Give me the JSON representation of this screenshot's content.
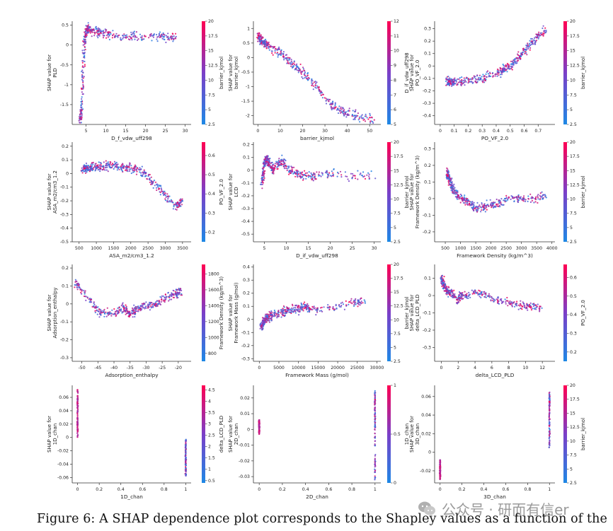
{
  "caption": "Figure 6: A SHAP dependence plot corresponds to the Shapley values as a function of the",
  "watermark": "公众号 · 研而有信er",
  "colors": {
    "low": "#1e88e5",
    "mid": "#7b3fc8",
    "high": "#ff0052",
    "point_opacity": 0.85
  },
  "chart_data": [
    {
      "type": "scatter",
      "xlabel": "D_f_vdw_uff298",
      "ylabel": "SHAP value for",
      "ylabel2": "PLD",
      "xticks": [
        5,
        10,
        15,
        20,
        25,
        30
      ],
      "yticks": [
        0.5,
        0.0,
        -0.5,
        -1.0,
        -1.5
      ],
      "xlim": [
        1.5,
        31.5
      ],
      "ylim": [
        -2.0,
        0.6
      ],
      "colorbar": {
        "label": "barrier_kjmol",
        "ticks": [
          2.5,
          5.0,
          7.5,
          10.0,
          12.5,
          15.0,
          17.5,
          20.0
        ],
        "range": [
          2.5,
          20.0
        ]
      },
      "series": [
        {
          "x": [
            3.6,
            3.9,
            4.2,
            4.6,
            5,
            5.5,
            6.5,
            8,
            10,
            12,
            15,
            18,
            22,
            25,
            28
          ],
          "y": [
            -1.9,
            -1.5,
            -0.6,
            0.1,
            0.33,
            0.4,
            0.36,
            0.33,
            0.28,
            0.25,
            0.22,
            0.22,
            0.2,
            0.2,
            0.2
          ]
        }
      ]
    },
    {
      "type": "scatter",
      "xlabel": "barrier_kjmol",
      "ylabel": "SHAP value for",
      "ylabel2": "barrier_kjmol",
      "xticks": [
        0,
        10,
        20,
        30,
        40,
        50
      ],
      "yticks": [
        1.0,
        0.5,
        0.0,
        -0.5,
        -1.0,
        -1.5,
        -2.0
      ],
      "xlim": [
        -2,
        55
      ],
      "ylim": [
        -2.3,
        1.25
      ],
      "colorbar": {
        "label": "D_if_vdw_uff298",
        "ticks": [
          5,
          6,
          7,
          8,
          9,
          10,
          11,
          12
        ],
        "range": [
          5,
          12
        ]
      },
      "series": [
        {
          "x": [
            0,
            2,
            5,
            10,
            15,
            20,
            25,
            30,
            35,
            40,
            45,
            52
          ],
          "y": [
            0.75,
            0.55,
            0.4,
            0.15,
            -0.2,
            -0.5,
            -0.9,
            -1.4,
            -1.75,
            -1.9,
            -2.0,
            -2.15
          ]
        }
      ]
    },
    {
      "type": "scatter",
      "xlabel": "PO_VF_2.0",
      "ylabel": "SHAP value for",
      "ylabel2": "PO_VF_2.0",
      "xticks": [
        0.0,
        0.1,
        0.2,
        0.3,
        0.4,
        0.5,
        0.6,
        0.7
      ],
      "yticks": [
        0.3,
        0.2,
        0.1,
        0.0,
        -0.1,
        -0.2,
        -0.3,
        -0.4
      ],
      "xlim": [
        -0.04,
        0.82
      ],
      "ylim": [
        -0.47,
        0.36
      ],
      "colorbar": {
        "label": "barrier_kjmol",
        "ticks": [
          2.5,
          5.0,
          7.5,
          10.0,
          12.5,
          15.0,
          17.5,
          20.0
        ],
        "range": [
          2.5,
          20.0
        ]
      },
      "series": [
        {
          "x": [
            0.05,
            0.1,
            0.2,
            0.3,
            0.4,
            0.45,
            0.5,
            0.55,
            0.6,
            0.65,
            0.7,
            0.76
          ],
          "y": [
            -0.12,
            -0.14,
            -0.12,
            -0.1,
            -0.06,
            -0.03,
            0.0,
            0.05,
            0.12,
            0.18,
            0.24,
            0.3
          ]
        }
      ]
    },
    {
      "type": "scatter",
      "xlabel": "ASA_m2/cm3_1.2",
      "ylabel": "SHAP value for",
      "ylabel2": "ASA_m2/cm3_1.2",
      "xticks": [
        500,
        1000,
        1500,
        2000,
        2500,
        3000,
        3500
      ],
      "yticks": [
        0.2,
        0.1,
        0.0,
        -0.1,
        -0.2,
        -0.3,
        -0.4,
        -0.5
      ],
      "xlim": [
        300,
        3750
      ],
      "ylim": [
        -0.5,
        0.23
      ],
      "colorbar": {
        "label": "PO_VF_2.0",
        "ticks": [
          0.2,
          0.3,
          0.4,
          0.5,
          0.6
        ],
        "range": [
          0.15,
          0.67
        ]
      },
      "series": [
        {
          "x": [
            600,
            900,
            1200,
            1500,
            1800,
            2100,
            2400,
            2700,
            3000,
            3300,
            3500
          ],
          "y": [
            0.03,
            0.05,
            0.05,
            0.06,
            0.04,
            0.04,
            0.0,
            -0.08,
            -0.16,
            -0.24,
            -0.2
          ]
        }
      ]
    },
    {
      "type": "scatter",
      "xlabel": "D_if_vdw_uff298",
      "ylabel": "SHAP value for",
      "ylabel2": "LCD",
      "xticks": [
        5,
        10,
        15,
        20,
        25,
        30
      ],
      "yticks": [
        0.2,
        0.1,
        0.0,
        -0.1,
        -0.2,
        -0.3,
        -0.4,
        -0.5
      ],
      "xlim": [
        2.5,
        31.5
      ],
      "ylim": [
        -0.56,
        0.22
      ],
      "colorbar": {
        "label": "barrier_kjmol",
        "ticks": [
          2.5,
          5.0,
          7.5,
          10.0,
          12.5,
          15.0,
          17.5,
          20.0
        ],
        "range": [
          2.5,
          20.0
        ]
      },
      "series": [
        {
          "x": [
            4.5,
            5,
            5.5,
            6,
            7,
            8,
            9,
            10,
            12,
            14,
            16,
            20,
            25,
            30
          ],
          "y": [
            -0.1,
            0.05,
            0.1,
            0.06,
            0.0,
            0.04,
            0.08,
            0.02,
            -0.02,
            -0.04,
            -0.05,
            -0.02,
            -0.04,
            -0.04
          ]
        }
      ]
    },
    {
      "type": "scatter",
      "xlabel": "Framework Density (kg/m^3)",
      "ylabel": "SHAP value for",
      "ylabel2": "Framework Density (kg/m^3)",
      "xticks": [
        500,
        1000,
        1500,
        2000,
        2500,
        3000,
        3500,
        4000
      ],
      "yticks": [
        0.3,
        0.2,
        0.1,
        0.0,
        -0.1,
        -0.2
      ],
      "xlim": [
        150,
        4100
      ],
      "ylim": [
        -0.26,
        0.34
      ],
      "colorbar": {
        "label": "barrier_kjmol",
        "ticks": [
          2.5,
          5.0,
          7.5,
          10.0,
          12.5,
          15.0,
          17.5,
          20.0
        ],
        "range": [
          2.5,
          20.0
        ]
      },
      "series": [
        {
          "x": [
            550,
            700,
            900,
            1200,
            1500,
            1800,
            2200,
            2600,
            3000,
            3500,
            3800
          ],
          "y": [
            0.16,
            0.08,
            0.02,
            -0.02,
            -0.05,
            -0.05,
            -0.03,
            0.0,
            0.0,
            0.0,
            0.01
          ]
        }
      ]
    },
    {
      "type": "scatter",
      "xlabel": "Adsorption_enthalpy",
      "ylabel": "SHAP value for",
      "ylabel2": "Adsorption_enthalpy",
      "xticks": [
        -50,
        -45,
        -40,
        -35,
        -30,
        -25,
        -20
      ],
      "yticks": [
        0.2,
        0.1,
        0.0,
        -0.1,
        -0.2,
        -0.3
      ],
      "xlim": [
        -53,
        -16
      ],
      "ylim": [
        -0.32,
        0.22
      ],
      "colorbar": {
        "label": "Framework Density (kg/m^3)",
        "ticks": [
          800,
          1000,
          1200,
          1400,
          1600,
          1800
        ],
        "range": [
          700,
          1920
        ]
      },
      "series": [
        {
          "x": [
            -52,
            -45,
            -40,
            -37,
            -35,
            -33,
            -30,
            -27,
            -24,
            -21,
            -19
          ],
          "y": [
            0.12,
            -0.04,
            -0.05,
            -0.02,
            -0.06,
            -0.03,
            -0.01,
            0.0,
            0.03,
            0.06,
            0.07
          ]
        }
      ]
    },
    {
      "type": "scatter",
      "xlabel": "Framework Mass (g/mol)",
      "ylabel": "SHAP value for",
      "ylabel2": "Framework Mass (g/mol)",
      "xticks": [
        0,
        5000,
        10000,
        15000,
        20000,
        25000,
        30000
      ],
      "yticks": [
        0.4,
        0.3,
        0.2,
        0.1,
        0.0,
        -0.1,
        -0.2,
        -0.3
      ],
      "xlim": [
        -1500,
        31000
      ],
      "ylim": [
        -0.32,
        0.42
      ],
      "colorbar": {
        "label": "barrier_kjmol",
        "ticks": [
          2.5,
          5.0,
          7.5,
          10.0,
          12.5,
          15.0,
          17.5,
          20.0
        ],
        "range": [
          2.5,
          20.0
        ]
      },
      "series": [
        {
          "x": [
            500,
            1500,
            3000,
            5000,
            7000,
            9000,
            11000,
            13000,
            18000,
            24000,
            27000
          ],
          "y": [
            -0.06,
            0.0,
            0.03,
            0.05,
            0.06,
            0.08,
            0.1,
            0.08,
            0.08,
            0.13,
            0.14
          ]
        }
      ]
    },
    {
      "type": "scatter",
      "xlabel": "delta_LCD_PLD",
      "ylabel": "SHAP value for",
      "ylabel2": "delta_LCD_PLD",
      "xticks": [
        0,
        2,
        4,
        6,
        8,
        10,
        12
      ],
      "yticks": [
        0.1,
        0.0,
        -0.1,
        -0.2,
        -0.3
      ],
      "xlim": [
        -0.8,
        13.5
      ],
      "ylim": [
        -0.38,
        0.18
      ],
      "colorbar": {
        "label": "PO_VF_2.0",
        "ticks": [
          0.2,
          0.3,
          0.4,
          0.5,
          0.6
        ],
        "range": [
          0.15,
          0.67
        ]
      },
      "series": [
        {
          "x": [
            0,
            0.3,
            0.6,
            1,
            1.5,
            2,
            2.5,
            3,
            4,
            5,
            6,
            7,
            8,
            9,
            10,
            11,
            12
          ],
          "y": [
            0.1,
            0.06,
            0.03,
            0.02,
            0.0,
            -0.03,
            0.01,
            0.0,
            0.02,
            0.01,
            -0.02,
            -0.03,
            -0.04,
            -0.05,
            -0.06,
            -0.06,
            -0.07
          ]
        }
      ]
    },
    {
      "type": "scatter",
      "xlabel": "1D_chan",
      "ylabel": "SHAP value for",
      "ylabel2": "1D_chan",
      "xticks": [
        0.0,
        0.2,
        0.4,
        0.6,
        0.8,
        1.0
      ],
      "yticks": [
        0.06,
        0.04,
        0.02,
        0.0,
        -0.02,
        -0.04,
        -0.06
      ],
      "xlim": [
        -0.05,
        1.05
      ],
      "ylim": [
        -0.068,
        0.078
      ],
      "colorbar": {
        "label": "delta_LCD_PLD",
        "ticks": [
          0.5,
          1.0,
          1.5,
          2.0,
          2.5,
          3.0,
          3.5,
          4.0,
          4.5
        ],
        "range": [
          0.4,
          4.7
        ]
      },
      "series": [
        {
          "x": [
            0,
            0,
            0,
            1,
            1,
            1
          ],
          "y": [
            0.072,
            0.035,
            0.0,
            -0.003,
            -0.03,
            -0.058
          ]
        }
      ]
    },
    {
      "type": "scatter",
      "xlabel": "2D_chan",
      "ylabel": "SHAP value for",
      "ylabel2": "2D_chan",
      "xticks": [
        0.0,
        0.2,
        0.4,
        0.6,
        0.8,
        1.0
      ],
      "yticks": [
        0.02,
        0.01,
        0.0,
        -0.01,
        -0.02,
        -0.03
      ],
      "xlim": [
        -0.05,
        1.05
      ],
      "ylim": [
        -0.034,
        0.028
      ],
      "colorbar": {
        "label": "1D_chan",
        "ticks": [
          0.0,
          0.5,
          1.0
        ],
        "range": [
          0.0,
          1.0
        ]
      },
      "series": [
        {
          "x": [
            0,
            0,
            1,
            1,
            1
          ],
          "y": [
            0.006,
            -0.003,
            0.025,
            0.0,
            -0.032
          ]
        }
      ]
    },
    {
      "type": "scatter",
      "xlabel": "3D_chan",
      "ylabel": "SHAP value for",
      "ylabel2": "3D_chan",
      "xticks": [
        0.0,
        0.2,
        0.4,
        0.6,
        0.8,
        1.0
      ],
      "yticks": [
        0.06,
        0.04,
        0.02,
        0.0,
        -0.02
      ],
      "xlim": [
        -0.05,
        1.05
      ],
      "ylim": [
        -0.033,
        0.072
      ],
      "colorbar": {
        "label": "barrier_kjmol",
        "ticks": [
          2.5,
          5.0,
          7.5,
          10.0,
          12.5,
          15.0,
          17.5,
          20.0
        ],
        "range": [
          2.5,
          20.0
        ]
      },
      "series": [
        {
          "x": [
            0,
            0,
            0,
            1,
            1,
            1
          ],
          "y": [
            -0.008,
            -0.02,
            -0.03,
            0.065,
            0.03,
            0.005
          ]
        }
      ]
    }
  ]
}
